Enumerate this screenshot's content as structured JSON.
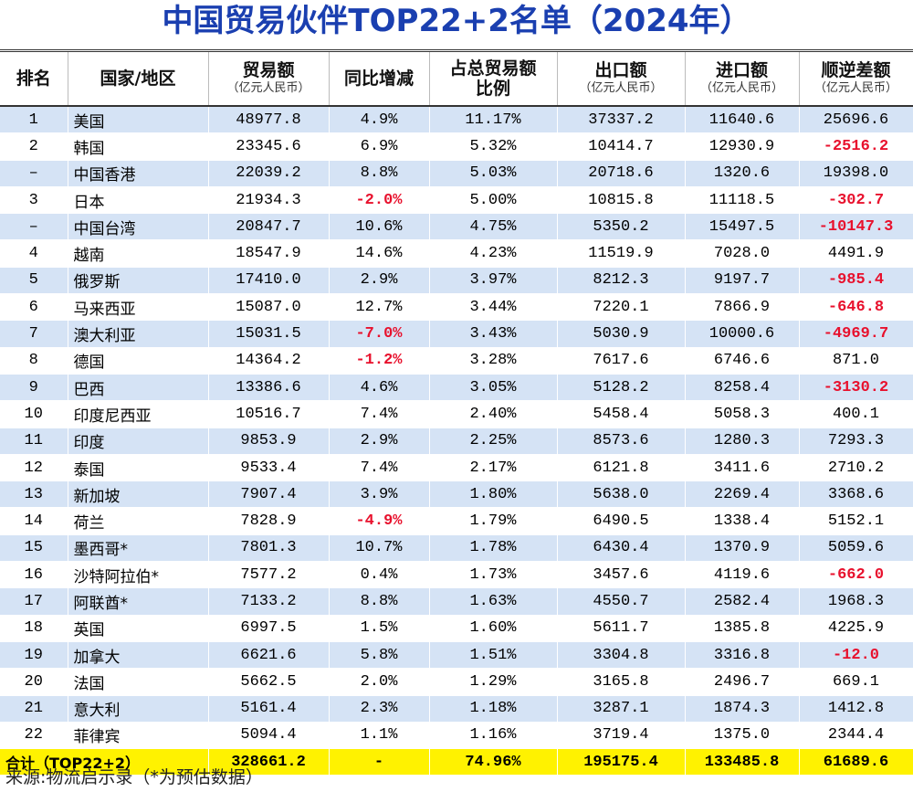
{
  "title": "中国贸易伙伴TOP22+2名单（2024年）",
  "table": {
    "headers": [
      {
        "lines": [
          "排名"
        ]
      },
      {
        "lines": [
          "国家/地区"
        ]
      },
      {
        "lines": [
          "贸易额"
        ],
        "unit": "（亿元人民币）"
      },
      {
        "lines": [
          "同比增减"
        ]
      },
      {
        "lines": [
          "占总贸易额",
          "比例"
        ]
      },
      {
        "lines": [
          "出口额"
        ],
        "unit": "（亿元人民币）"
      },
      {
        "lines": [
          "进口额"
        ],
        "unit": "（亿元人民币）"
      },
      {
        "lines": [
          "顺逆差额"
        ],
        "unit": "（亿元人民币）"
      }
    ],
    "rows": [
      [
        "1",
        "美国",
        "48977.8",
        "4.9%",
        "11.17%",
        "37337.2",
        "11640.6",
        "25696.6"
      ],
      [
        "2",
        "韩国",
        "23345.6",
        "6.9%",
        "5.32%",
        "10414.7",
        "12930.9",
        "-2516.2"
      ],
      [
        "–",
        "中国香港",
        "22039.2",
        "8.8%",
        "5.03%",
        "20718.6",
        "1320.6",
        "19398.0"
      ],
      [
        "3",
        "日本",
        "21934.3",
        "-2.0%",
        "5.00%",
        "10815.8",
        "11118.5",
        "-302.7"
      ],
      [
        "–",
        "中国台湾",
        "20847.7",
        "10.6%",
        "4.75%",
        "5350.2",
        "15497.5",
        "-10147.3"
      ],
      [
        "4",
        "越南",
        "18547.9",
        "14.6%",
        "4.23%",
        "11519.9",
        "7028.0",
        "4491.9"
      ],
      [
        "5",
        "俄罗斯",
        "17410.0",
        "2.9%",
        "3.97%",
        "8212.3",
        "9197.7",
        "-985.4"
      ],
      [
        "6",
        "马来西亚",
        "15087.0",
        "12.7%",
        "3.44%",
        "7220.1",
        "7866.9",
        "-646.8"
      ],
      [
        "7",
        "澳大利亚",
        "15031.5",
        "-7.0%",
        "3.43%",
        "5030.9",
        "10000.6",
        "-4969.7"
      ],
      [
        "8",
        "德国",
        "14364.2",
        "-1.2%",
        "3.28%",
        "7617.6",
        "6746.6",
        "871.0"
      ],
      [
        "9",
        "巴西",
        "13386.6",
        "4.6%",
        "3.05%",
        "5128.2",
        "8258.4",
        "-3130.2"
      ],
      [
        "10",
        "印度尼西亚",
        "10516.7",
        "7.4%",
        "2.40%",
        "5458.4",
        "5058.3",
        "400.1"
      ],
      [
        "11",
        "印度",
        "9853.9",
        "2.9%",
        "2.25%",
        "8573.6",
        "1280.3",
        "7293.3"
      ],
      [
        "12",
        "泰国",
        "9533.4",
        "7.4%",
        "2.17%",
        "6121.8",
        "3411.6",
        "2710.2"
      ],
      [
        "13",
        "新加坡",
        "7907.4",
        "3.9%",
        "1.80%",
        "5638.0",
        "2269.4",
        "3368.6"
      ],
      [
        "14",
        "荷兰",
        "7828.9",
        "-4.9%",
        "1.79%",
        "6490.5",
        "1338.4",
        "5152.1"
      ],
      [
        "15",
        "墨西哥*",
        "7801.3",
        "10.7%",
        "1.78%",
        "6430.4",
        "1370.9",
        "5059.6"
      ],
      [
        "16",
        "沙特阿拉伯*",
        "7577.2",
        "0.4%",
        "1.73%",
        "3457.6",
        "4119.6",
        "-662.0"
      ],
      [
        "17",
        "阿联酋*",
        "7133.2",
        "8.8%",
        "1.63%",
        "4550.7",
        "2582.4",
        "1968.3"
      ],
      [
        "18",
        "英国",
        "6997.5",
        "1.5%",
        "1.60%",
        "5611.7",
        "1385.8",
        "4225.9"
      ],
      [
        "19",
        "加拿大",
        "6621.6",
        "5.8%",
        "1.51%",
        "3304.8",
        "3316.8",
        "-12.0"
      ],
      [
        "20",
        "法国",
        "5662.5",
        "2.0%",
        "1.29%",
        "3165.8",
        "2496.7",
        "669.1"
      ],
      [
        "21",
        "意大利",
        "5161.4",
        "2.3%",
        "1.18%",
        "3287.1",
        "1874.3",
        "1412.8"
      ],
      [
        "22",
        "菲律宾",
        "5094.4",
        "1.1%",
        "1.16%",
        "3719.4",
        "1375.0",
        "2344.4"
      ]
    ],
    "total": [
      "合计（TOP22+2）",
      "328661.2",
      "-",
      "74.96%",
      "195175.4",
      "133485.8",
      "61689.6"
    ]
  },
  "source": "来源:物流启示录（*为预估数据）"
}
